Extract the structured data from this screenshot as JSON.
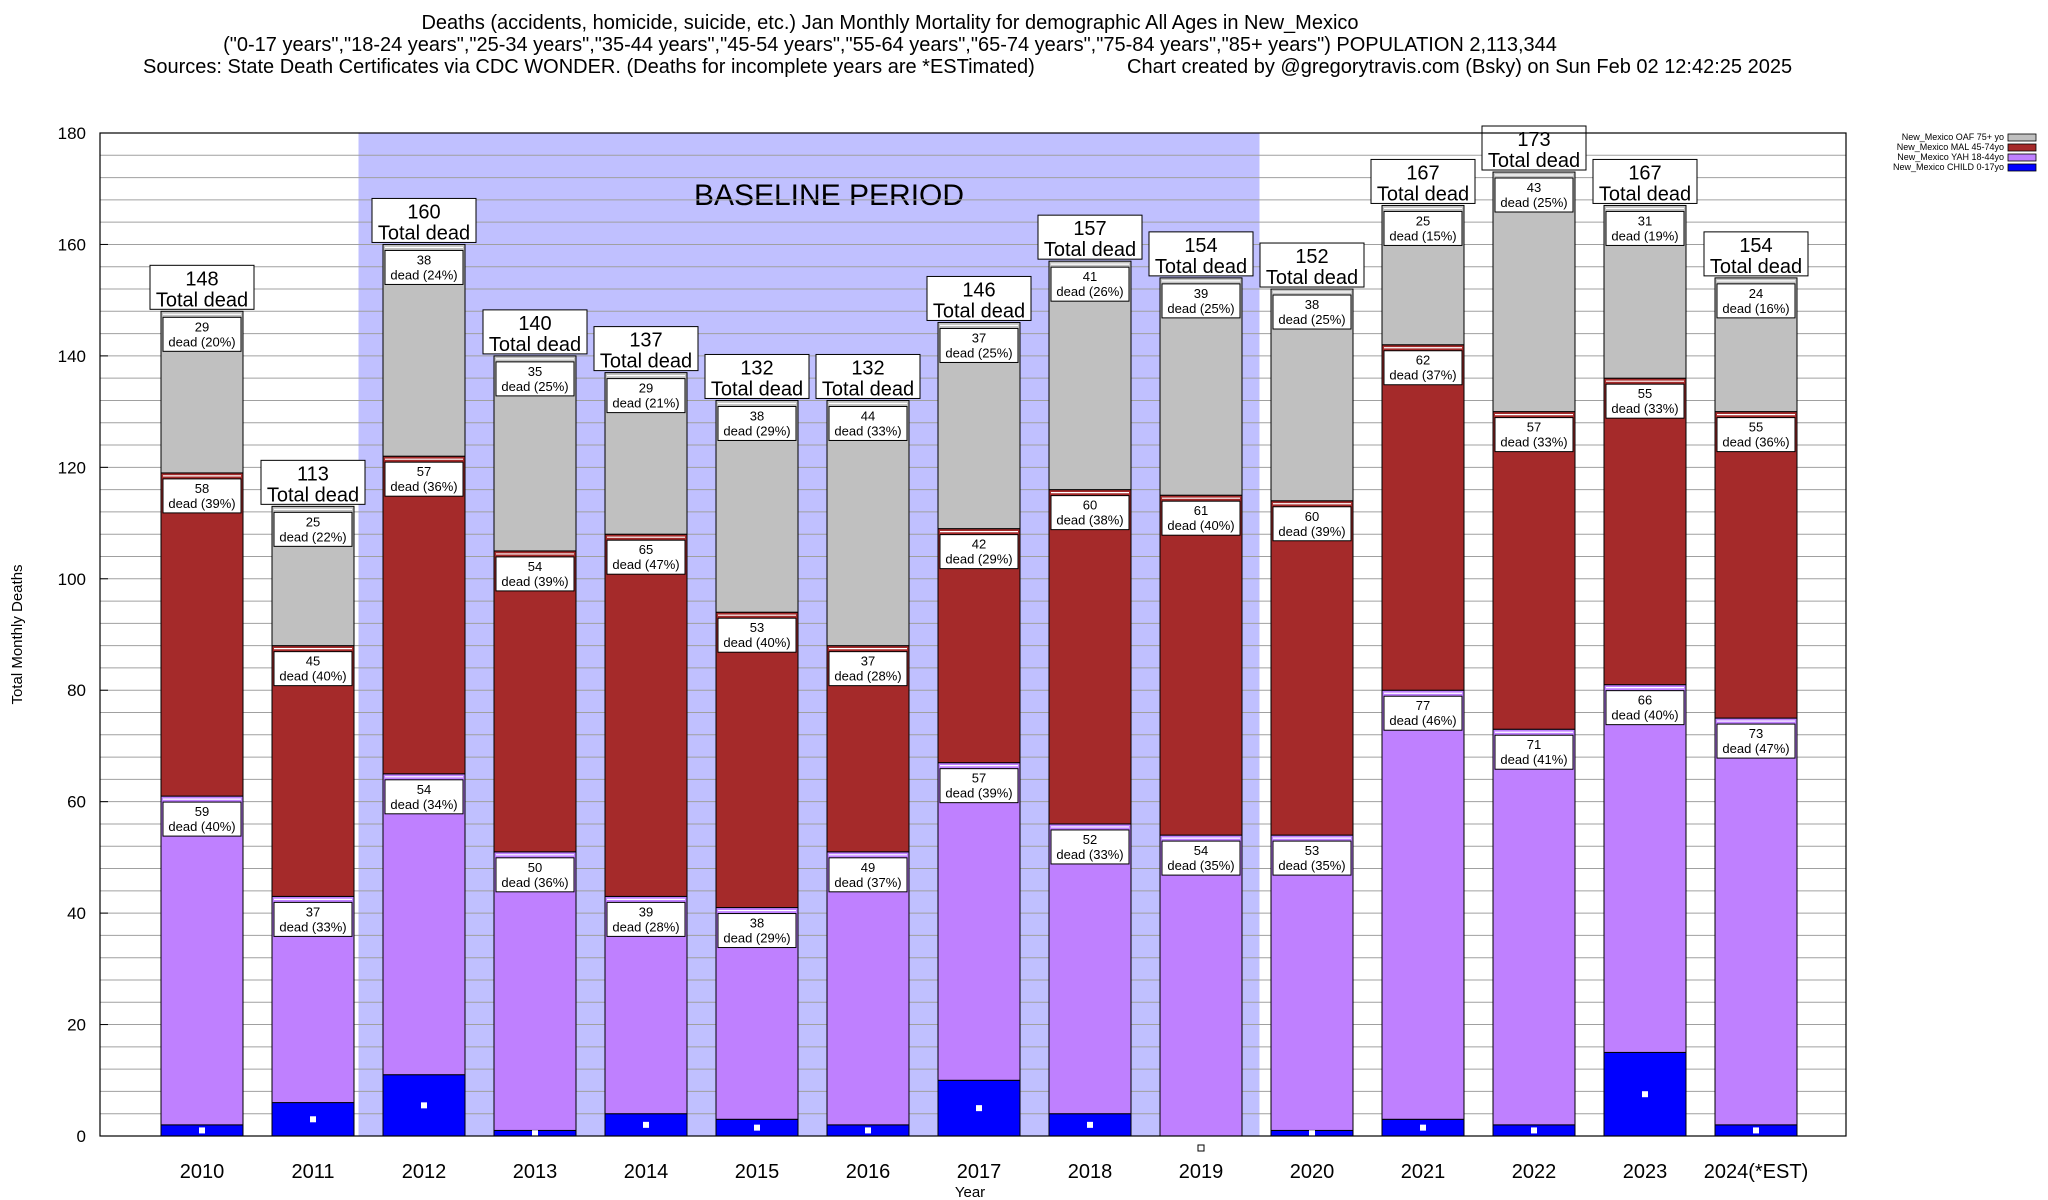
{
  "header": {
    "title": "Deaths (accidents, homicide, suicide, etc.) Jan Monthly Mortality for demographic All Ages in New_Mexico",
    "subtitle": "(\"0-17 years\",\"18-24 years\",\"25-34 years\",\"35-44 years\",\"45-54 years\",\"55-64 years\",\"65-74 years\",\"75-84 years\",\"85+ years\") POPULATION 2,113,344",
    "sources": "Sources: State Death Certificates via CDC WONDER. (Deaths for incomplete years are *ESTimated)",
    "credit": "Chart created by @gregorytravis.com (Bsky) on Sun Feb 02 12:42:25 2025"
  },
  "colors": {
    "child": "#0000ff",
    "yah": "#bf80ff",
    "mal": "#a52a2a",
    "oaf": "#c0c0c0",
    "baseline": "#c0c0ff",
    "grid": "#a0a0a0"
  },
  "chart_data": {
    "type": "bar",
    "stacked": true,
    "categories": [
      "2010",
      "2011",
      "2012",
      "2013",
      "2014",
      "2015",
      "2016",
      "2017",
      "2018",
      "2019",
      "2020",
      "2021",
      "2022",
      "2023",
      "2024(*EST)"
    ],
    "xlabel": "Year",
    "ylabel": "Total Monthly Deaths",
    "ylim": [
      0,
      180
    ],
    "yticks": [
      0,
      20,
      40,
      60,
      80,
      100,
      120,
      140,
      160,
      180
    ],
    "grid": true,
    "legend_position": "top-right",
    "series": [
      {
        "name": "New_Mexico CHILD 0-17yo",
        "color": "#0000ff",
        "values": [
          2,
          6,
          11,
          1,
          4,
          3,
          2,
          10,
          4,
          0,
          1,
          3,
          2,
          15,
          2
        ]
      },
      {
        "name": "New_Mexico YAH 18-44yo",
        "color": "#bf80ff",
        "values": [
          59,
          37,
          54,
          50,
          39,
          38,
          49,
          57,
          52,
          54,
          53,
          77,
          71,
          66,
          73
        ],
        "labels": [
          "dead (40%)",
          "dead (33%)",
          "dead (34%)",
          "dead (36%)",
          "dead (28%)",
          "dead (29%)",
          "dead (37%)",
          "dead (39%)",
          "dead (33%)",
          "dead (35%)",
          "dead (35%)",
          "dead (46%)",
          "dead (41%)",
          "dead (40%)",
          "dead (47%)"
        ]
      },
      {
        "name": "New_Mexico MAL 45-74yo",
        "color": "#a52a2a",
        "values": [
          58,
          45,
          57,
          54,
          65,
          53,
          37,
          42,
          60,
          61,
          60,
          62,
          57,
          55,
          55
        ],
        "labels": [
          "dead (39%)",
          "dead (40%)",
          "dead (36%)",
          "dead (39%)",
          "dead (47%)",
          "dead (40%)",
          "dead (28%)",
          "dead (29%)",
          "dead (38%)",
          "dead (40%)",
          "dead (39%)",
          "dead (37%)",
          "dead (33%)",
          "dead (33%)",
          "dead (36%)"
        ]
      },
      {
        "name": "New_Mexico OAF 75+ yo",
        "color": "#c0c0c0",
        "values": [
          29,
          25,
          38,
          35,
          29,
          38,
          44,
          37,
          41,
          39,
          38,
          25,
          43,
          31,
          24
        ],
        "labels": [
          "dead (20%)",
          "dead (22%)",
          "dead (24%)",
          "dead (25%)",
          "dead (21%)",
          "dead (29%)",
          "dead (33%)",
          "dead (25%)",
          "dead (26%)",
          "dead (25%)",
          "dead (25%)",
          "dead (15%)",
          "dead (25%)",
          "dead (19%)",
          "dead (16%)"
        ]
      }
    ],
    "totals": [
      148,
      113,
      160,
      140,
      137,
      132,
      132,
      146,
      157,
      154,
      152,
      167,
      173,
      167,
      154
    ],
    "total_suffix": "Total dead",
    "baseline": {
      "label": "BASELINE PERIOD",
      "from": "2012",
      "to": "2019"
    }
  }
}
